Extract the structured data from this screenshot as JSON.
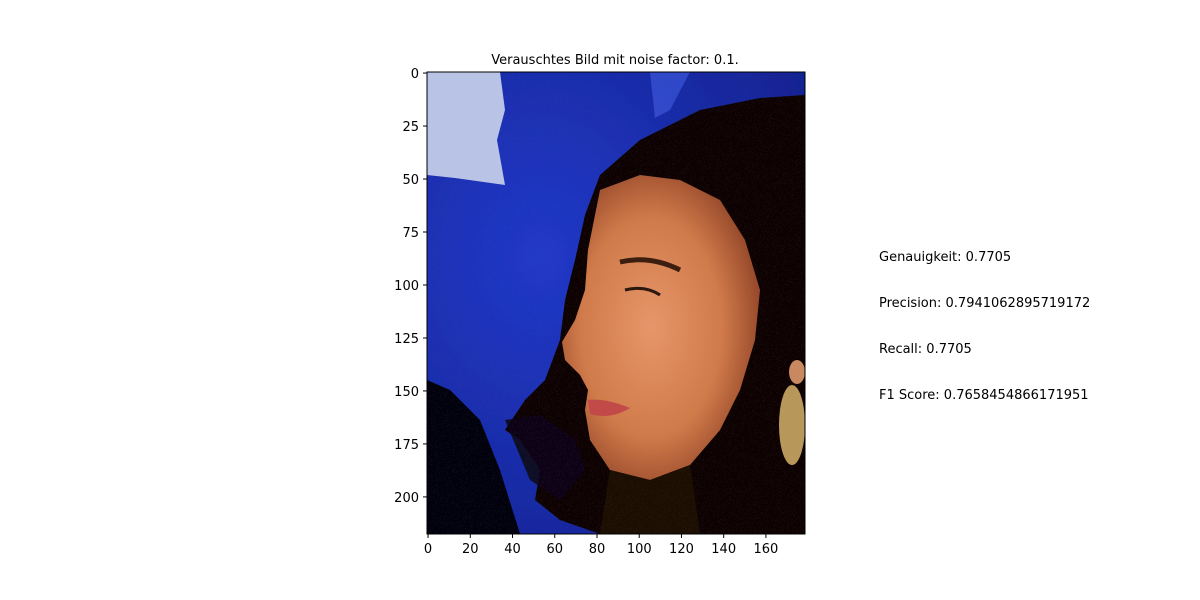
{
  "chart_data": {
    "type": "image",
    "title": "Verauschtes Bild mit noise factor: 0.1.",
    "xlabel": "",
    "ylabel": "",
    "image_width": 179,
    "image_height": 218,
    "x_ticks": [
      0,
      20,
      40,
      60,
      80,
      100,
      120,
      140,
      160
    ],
    "y_ticks": [
      0,
      25,
      50,
      75,
      100,
      125,
      150,
      175,
      200
    ],
    "y_inverted": true,
    "grid": false,
    "image_description_colors": {
      "background": "#1a2fb0",
      "hair": "#0a0606",
      "skin": "#d98a5a",
      "highlight": "#c8d0e8"
    }
  },
  "metrics": [
    "Genauigkeit: 0.7705",
    "Precision: 0.7941062895719172",
    "Recall: 0.7705",
    "F1 Score: 0.7658454866171951"
  ]
}
